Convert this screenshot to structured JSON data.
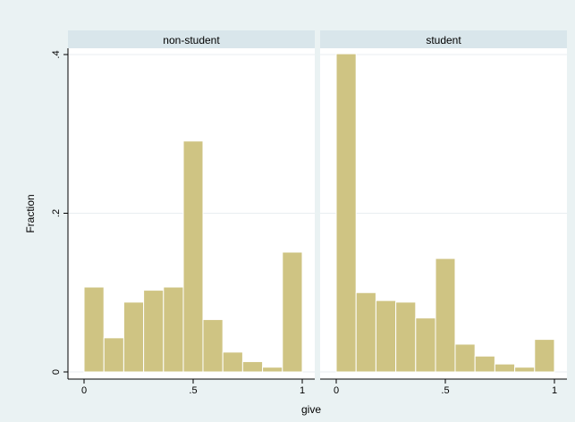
{
  "chart_data": {
    "type": "bar",
    "subtype": "histogram",
    "xlabel": "give",
    "ylabel": "Fraction",
    "xlim": [
      0,
      1
    ],
    "ylim": [
      0,
      0.4
    ],
    "x_ticks": [
      0,
      0.5,
      1
    ],
    "x_tick_labels": [
      "0",
      ".5",
      "1"
    ],
    "y_ticks": [
      0,
      0.2,
      0.4
    ],
    "y_tick_labels": [
      "0",
      ".2",
      ".4"
    ],
    "grid": true,
    "bar_color": "#cfc483",
    "bar_outline_color": "#ffffff",
    "strip_color": "#d9e6eb",
    "background_color": "#eaf2f3",
    "panels": [
      {
        "label": "non-student",
        "bins": [
          {
            "x0": 0.0,
            "x1": 0.091,
            "value": 0.107
          },
          {
            "x0": 0.091,
            "x1": 0.182,
            "value": 0.043
          },
          {
            "x0": 0.182,
            "x1": 0.273,
            "value": 0.088
          },
          {
            "x0": 0.273,
            "x1": 0.364,
            "value": 0.103
          },
          {
            "x0": 0.364,
            "x1": 0.455,
            "value": 0.107
          },
          {
            "x0": 0.455,
            "x1": 0.545,
            "value": 0.291
          },
          {
            "x0": 0.545,
            "x1": 0.636,
            "value": 0.066
          },
          {
            "x0": 0.636,
            "x1": 0.727,
            "value": 0.025
          },
          {
            "x0": 0.727,
            "x1": 0.818,
            "value": 0.013
          },
          {
            "x0": 0.818,
            "x1": 0.909,
            "value": 0.006
          },
          {
            "x0": 0.909,
            "x1": 1.0,
            "value": 0.151
          }
        ]
      },
      {
        "label": "student",
        "bins": [
          {
            "x0": 0.0,
            "x1": 0.091,
            "value": 0.401
          },
          {
            "x0": 0.091,
            "x1": 0.182,
            "value": 0.1
          },
          {
            "x0": 0.182,
            "x1": 0.273,
            "value": 0.09
          },
          {
            "x0": 0.273,
            "x1": 0.364,
            "value": 0.088
          },
          {
            "x0": 0.364,
            "x1": 0.455,
            "value": 0.068
          },
          {
            "x0": 0.455,
            "x1": 0.545,
            "value": 0.143
          },
          {
            "x0": 0.545,
            "x1": 0.636,
            "value": 0.035
          },
          {
            "x0": 0.636,
            "x1": 0.727,
            "value": 0.02
          },
          {
            "x0": 0.727,
            "x1": 0.818,
            "value": 0.01
          },
          {
            "x0": 0.818,
            "x1": 0.909,
            "value": 0.006
          },
          {
            "x0": 0.909,
            "x1": 1.0,
            "value": 0.041
          }
        ]
      }
    ]
  }
}
